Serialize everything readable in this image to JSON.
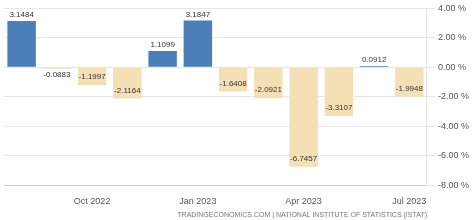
{
  "chart_data": {
    "type": "bar",
    "categories": [
      null,
      null,
      "Oct 2022",
      null,
      null,
      "Jan 2023",
      null,
      null,
      "Apr 2023",
      null,
      null,
      "Jul 2023"
    ],
    "values": [
      3.1484,
      -0.0883,
      -1.1997,
      -2.1164,
      1.1099,
      3.1847,
      -1.6408,
      -2.0921,
      -6.7457,
      -3.3107,
      0.0912,
      -1.9948
    ],
    "colors": [
      "#4a7fb8",
      "#f5dfb5",
      "#f5dfb5",
      "#f5dfb5",
      "#4a7fb8",
      "#4a7fb8",
      "#f5dfb5",
      "#f5dfb5",
      "#f5dfb5",
      "#f5dfb5",
      "#4a7fb8",
      "#f5dfb5"
    ],
    "ylim": [
      -8,
      4
    ],
    "yticks": [
      {
        "value": 4,
        "label": "4.00 %"
      },
      {
        "value": 2,
        "label": "2.00 %"
      },
      {
        "value": 0,
        "label": "0.00 %"
      },
      {
        "value": -2,
        "label": "-2.00 %"
      },
      {
        "value": -4,
        "label": "-4.00 %"
      },
      {
        "value": -6,
        "label": "-6.00 %"
      },
      {
        "value": -8,
        "label": "-8.00 %"
      }
    ],
    "grid": true,
    "data_labels": true,
    "source": "TRADINGECONOMICS.COM | NATIONAL INSTITUTE OF STATISTICS (ISTAT)"
  }
}
